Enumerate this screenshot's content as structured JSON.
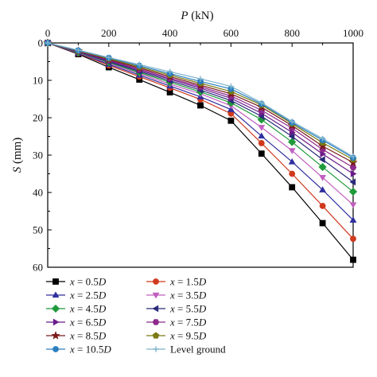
{
  "chart_data": {
    "type": "line",
    "xlabel": "P (kN)",
    "ylabel": "S (mm)",
    "xlim": [
      0,
      1000
    ],
    "ylim": [
      0,
      60
    ],
    "y_inverted": true,
    "x_axis_position": "top",
    "x_ticks": [
      "0",
      "200",
      "400",
      "600",
      "800",
      "1000"
    ],
    "y_ticks": [
      "0",
      "10",
      "20",
      "30",
      "40",
      "50",
      "60"
    ],
    "grid": false,
    "legend_position": "bottom",
    "x": [
      0,
      100,
      200,
      300,
      400,
      500,
      600,
      700,
      800,
      900,
      1000
    ],
    "series": [
      {
        "name": "x = 0.5D",
        "marker": "square",
        "color": "#000000",
        "values": [
          0,
          3.0,
          6.5,
          9.8,
          13.2,
          16.7,
          20.8,
          29.6,
          38.6,
          48.2,
          58.0
        ]
      },
      {
        "name": "x = 1.5D",
        "marker": "circle",
        "color": "#d0391e",
        "values": [
          0,
          2.8,
          6.0,
          9.0,
          12.0,
          15.1,
          18.9,
          26.8,
          35.0,
          43.6,
          52.4
        ]
      },
      {
        "name": "x = 2.5D",
        "marker": "triangle-up",
        "color": "#2e2e9e",
        "values": [
          0,
          2.7,
          5.7,
          8.6,
          11.5,
          14.4,
          17.8,
          24.9,
          31.8,
          39.3,
          47.4
        ]
      },
      {
        "name": "x = 3.5D",
        "marker": "triangle-down",
        "color": "#c25fc0",
        "values": [
          0,
          2.6,
          5.4,
          8.2,
          11.0,
          13.6,
          16.8,
          22.6,
          28.8,
          36.0,
          43.3
        ]
      },
      {
        "name": "x = 4.5D",
        "marker": "diamond",
        "color": "#1f9a3a",
        "values": [
          0,
          2.5,
          5.2,
          7.9,
          10.5,
          13.1,
          16.0,
          20.5,
          26.5,
          33.2,
          39.8
        ]
      },
      {
        "name": "x = 5.5D",
        "marker": "triangle-left",
        "color": "#2a2a7a",
        "values": [
          0,
          2.4,
          5.0,
          7.6,
          10.1,
          12.6,
          15.4,
          19.6,
          25.0,
          31.2,
          37.2
        ]
      },
      {
        "name": "x = 6.5D",
        "marker": "triangle-right",
        "color": "#6a1a8a",
        "values": [
          0,
          2.3,
          4.8,
          7.3,
          9.7,
          12.1,
          14.8,
          18.8,
          23.9,
          29.7,
          35.0
        ]
      },
      {
        "name": "x = 7.5D",
        "marker": "hexagon",
        "color": "#8e2a8c",
        "values": [
          0,
          2.2,
          4.6,
          7.0,
          9.4,
          11.7,
          14.2,
          18.0,
          22.8,
          28.5,
          33.3
        ]
      },
      {
        "name": "x = 8.5D",
        "marker": "star",
        "color": "#7a1a1a",
        "values": [
          0,
          2.1,
          4.4,
          6.7,
          9.0,
          11.3,
          13.6,
          17.2,
          22.1,
          27.6,
          32.0
        ]
      },
      {
        "name": "x = 9.5D",
        "marker": "pentagon",
        "color": "#7a7a10",
        "values": [
          0,
          2.1,
          4.2,
          6.4,
          8.6,
          10.8,
          13.0,
          16.6,
          21.6,
          26.7,
          31.2
        ]
      },
      {
        "name": "x = 10.5D",
        "marker": "circle",
        "color": "#2a7fc0",
        "values": [
          0,
          2.0,
          4.0,
          6.1,
          8.2,
          10.3,
          12.3,
          16.3,
          21.3,
          26.0,
          30.7
        ]
      },
      {
        "name": "Level ground",
        "marker": "plus",
        "color": "#7fb4cc",
        "values": [
          0,
          1.9,
          3.9,
          5.8,
          7.7,
          9.6,
          11.6,
          16.0,
          21.0,
          25.6,
          30.4
        ]
      }
    ]
  }
}
